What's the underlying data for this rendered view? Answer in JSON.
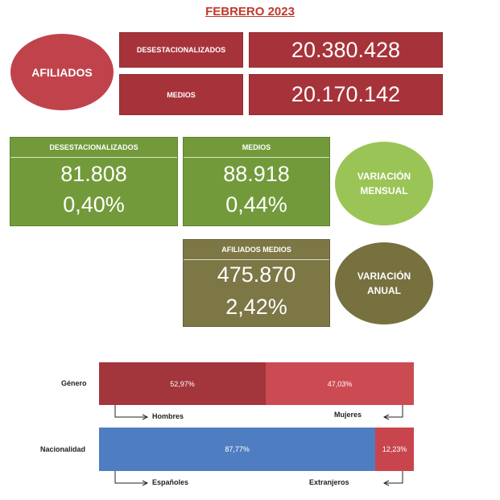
{
  "title": "FEBRERO 2023",
  "afiliados": {
    "label": "AFILIADOS",
    "rows": [
      {
        "label": "DESESTACIONALIZADOS",
        "value": "20.380.428"
      },
      {
        "label": "MEDIOS",
        "value": "20.170.142"
      }
    ]
  },
  "variacion_mensual": {
    "label_line1": "VARIACIÓN",
    "label_line2": "MENSUAL",
    "desestacionalizados": {
      "header": "DESESTACIONALIZADOS",
      "value": "81.808",
      "percent": "0,40%"
    },
    "medios": {
      "header": "MEDIOS",
      "value": "88.918",
      "percent": "0,44%"
    }
  },
  "variacion_anual": {
    "label_line1": "VARIACIÓN",
    "label_line2": "ANUAL",
    "header": "AFILIADOS MEDIOS",
    "value": "475.870",
    "percent": "2,42%"
  },
  "genero": {
    "label": "Género",
    "hombres": {
      "label": "Hombres",
      "percent_text": "52,97%",
      "percent": 52.97
    },
    "mujeres": {
      "label": "Mujeres",
      "percent_text": "47,03%",
      "percent": 47.03
    }
  },
  "nacionalidad": {
    "label": "Nacionalidad",
    "espanoles": {
      "label": "Españoles",
      "percent_text": "87,77%",
      "percent": 87.77
    },
    "extranjeros": {
      "label": "Extranjeros",
      "percent_text": "12,23%",
      "percent": 12.23
    }
  },
  "colors": {
    "hombres": "#a3353c",
    "mujeres": "#cc4a52",
    "espanoles": "#4e7ec1",
    "extranjeros": "#c9454d"
  }
}
